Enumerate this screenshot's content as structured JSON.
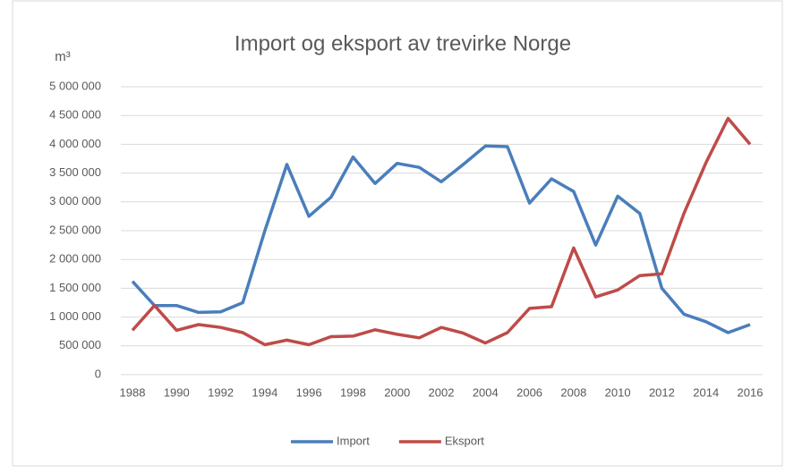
{
  "chart_data": {
    "type": "line",
    "title": "Import og eksport av trevirke Norge",
    "y_label": "m³",
    "x": [
      1988,
      1989,
      1990,
      1991,
      1992,
      1993,
      1994,
      1995,
      1996,
      1997,
      1998,
      1999,
      2000,
      2001,
      2002,
      2003,
      2004,
      2005,
      2006,
      2007,
      2008,
      2009,
      2010,
      2011,
      2012,
      2013,
      2014,
      2015,
      2016
    ],
    "series": [
      {
        "name": "Import",
        "color": "#4a7ebb",
        "values": [
          1620000,
          1200000,
          1200000,
          1080000,
          1090000,
          1250000,
          2500000,
          3650000,
          2750000,
          3080000,
          3780000,
          3320000,
          3670000,
          3600000,
          3350000,
          3650000,
          3970000,
          3960000,
          2980000,
          3400000,
          3180000,
          2250000,
          3100000,
          2800000,
          1500000,
          1050000,
          920000,
          730000,
          870000
        ]
      },
      {
        "name": "Eksport",
        "color": "#be4b48",
        "values": [
          770000,
          1200000,
          770000,
          870000,
          820000,
          730000,
          520000,
          600000,
          520000,
          660000,
          670000,
          780000,
          700000,
          640000,
          820000,
          720000,
          550000,
          730000,
          1150000,
          1180000,
          2200000,
          1350000,
          1470000,
          1720000,
          1750000,
          2800000,
          3680000,
          4450000,
          4000000
        ]
      }
    ],
    "xlim": [
      1988,
      2016
    ],
    "xticks": [
      1988,
      1990,
      1992,
      1994,
      1996,
      1998,
      2000,
      2002,
      2004,
      2006,
      2008,
      2010,
      2012,
      2014,
      2016
    ],
    "ylim": [
      0,
      5000000
    ],
    "yticks": [
      0,
      {
        "value": 500000,
        "label": "500 000"
      },
      {
        "value": 1000000,
        "label": "1 000 000"
      },
      {
        "value": 1500000,
        "label": "1 500 000"
      },
      {
        "value": 2000000,
        "label": "2 000 000"
      },
      {
        "value": 2500000,
        "label": "2 500 000"
      },
      {
        "value": 3000000,
        "label": "3 000 000"
      },
      {
        "value": 3500000,
        "label": "3 500 000"
      },
      {
        "value": 4000000,
        "label": "4 000 000"
      },
      {
        "value": 4500000,
        "label": "4 500 000"
      },
      {
        "value": 5000000,
        "label": "5 000 000"
      }
    ],
    "grid": true,
    "legend": "bottom"
  }
}
